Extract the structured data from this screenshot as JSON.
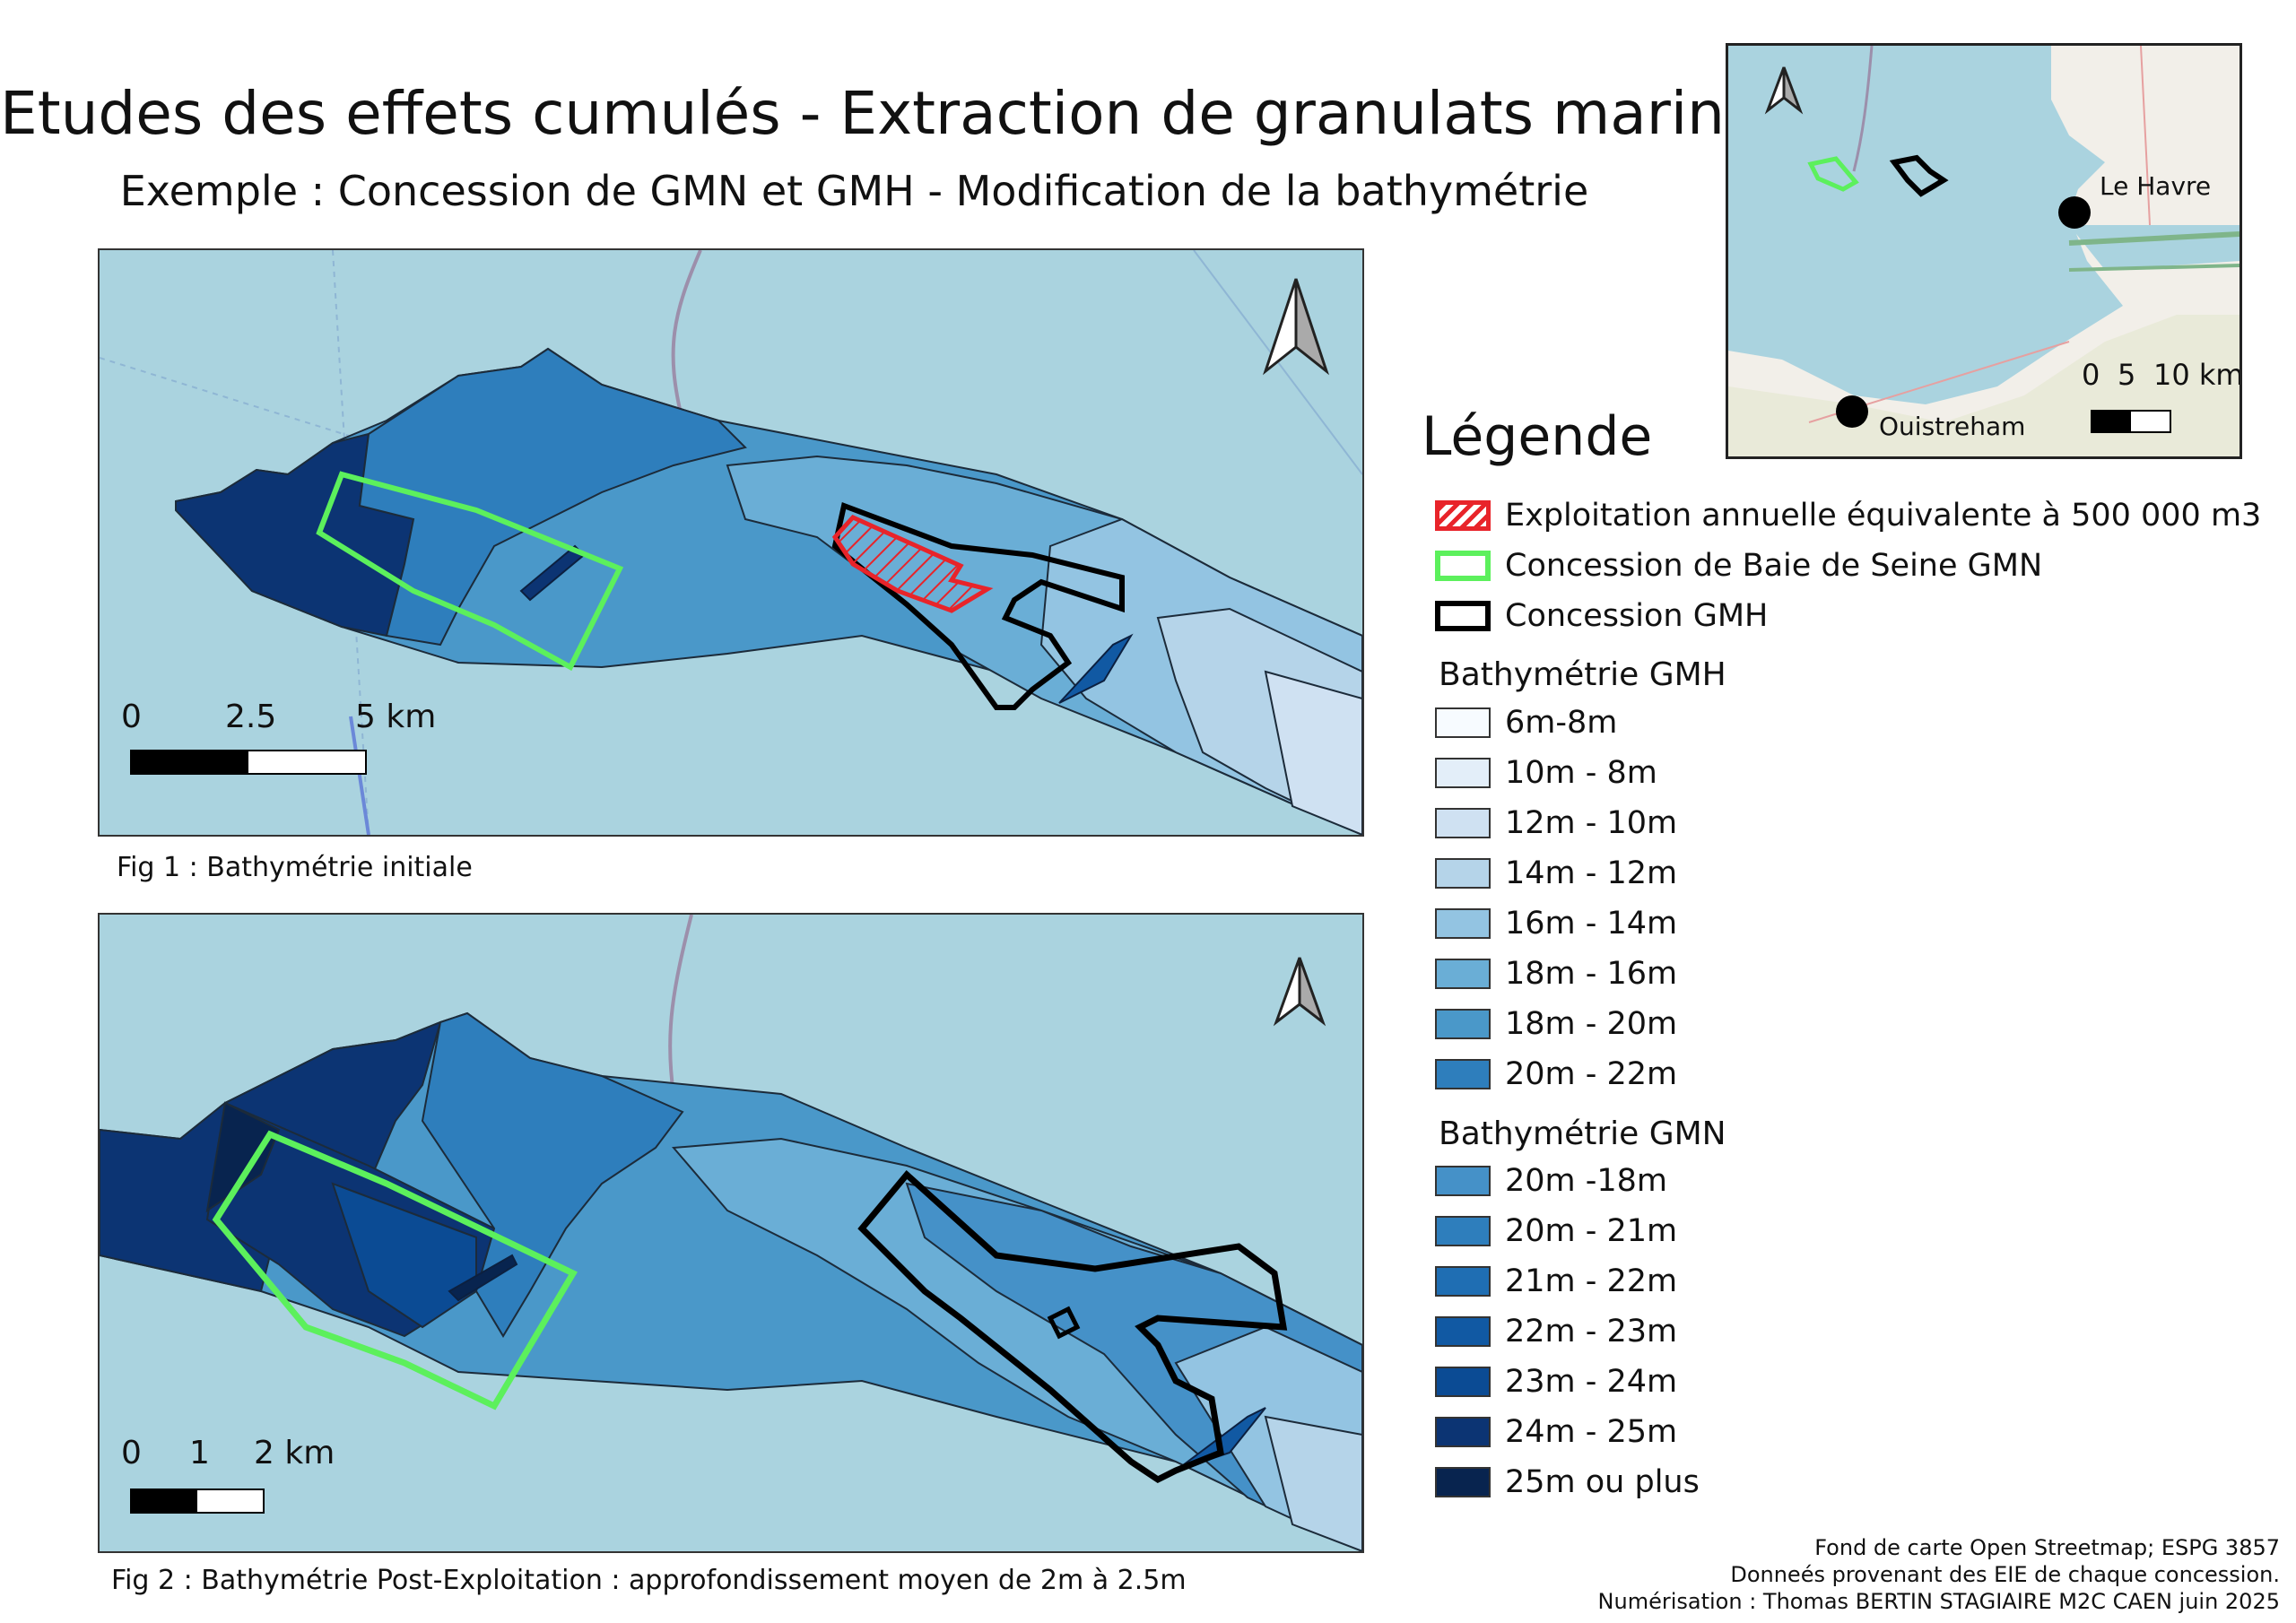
{
  "title": "Etudes des effets cumulés - Extraction de granulats marins",
  "subtitle": "Exemple : Concession de GMN et GMH - Modification de la bathymétrie",
  "fig1": {
    "caption": "Fig 1 : Bathymétrie initiale",
    "scale_labels": [
      "0",
      "2.5",
      "5 km"
    ]
  },
  "fig2": {
    "caption": "Fig 2 : Bathymétrie Post-Exploitation : approfondissement moyen de 2m à 2.5m",
    "scale_labels": [
      "0",
      "1",
      "2 km"
    ]
  },
  "inset": {
    "places": [
      "Le Havre",
      "Ouistreham"
    ],
    "scale_labels": [
      "0",
      "5",
      "10 km"
    ]
  },
  "legend": {
    "title": "Légende",
    "items": [
      {
        "label": "Exploitation annuelle équivalente à 500 000 m3",
        "color": "#e8242a",
        "style": "hatched"
      },
      {
        "label": "Concession de Baie de Seine GMN",
        "color": "#5cf05c",
        "style": "outline"
      },
      {
        "label": "Concession GMH",
        "color": "#000000",
        "style": "outline"
      }
    ],
    "gmh_title": "Bathymétrie GMH",
    "gmh_classes": [
      {
        "label": "6m-8m",
        "color": "#f7fbff"
      },
      {
        "label": "10m - 8m",
        "color": "#e3eef9"
      },
      {
        "label": "12m - 10m",
        "color": "#cfe1f2"
      },
      {
        "label": "14m - 12m",
        "color": "#b5d4e9"
      },
      {
        "label": "16m - 14m",
        "color": "#93c4e2"
      },
      {
        "label": "18m - 16m",
        "color": "#6aaed6"
      },
      {
        "label": "18m - 20m",
        "color": "#4a98c9"
      },
      {
        "label": "20m - 22m",
        "color": "#2e7ebc"
      }
    ],
    "gmn_title": "Bathymétrie GMN",
    "gmn_classes": [
      {
        "label": "20m -18m",
        "color": "#4591c8"
      },
      {
        "label": "20m - 21m",
        "color": "#2e7ebc"
      },
      {
        "label": "21m - 22m",
        "color": "#1f6eb3"
      },
      {
        "label": "22m - 23m",
        "color": "#1159a3"
      },
      {
        "label": "23m - 24m",
        "color": "#0b4b94"
      },
      {
        "label": "24m - 25m",
        "color": "#0c3473"
      },
      {
        "label": "25m ou plus",
        "color": "#08244f"
      }
    ]
  },
  "credits": [
    "Fond de carte Open Streetmap; ESPG 3857",
    "Donneés provenant des EIE de chaque concession.",
    "Numérisation : Thomas BERTIN STAGIAIRE M2C CAEN juin 2025"
  ]
}
